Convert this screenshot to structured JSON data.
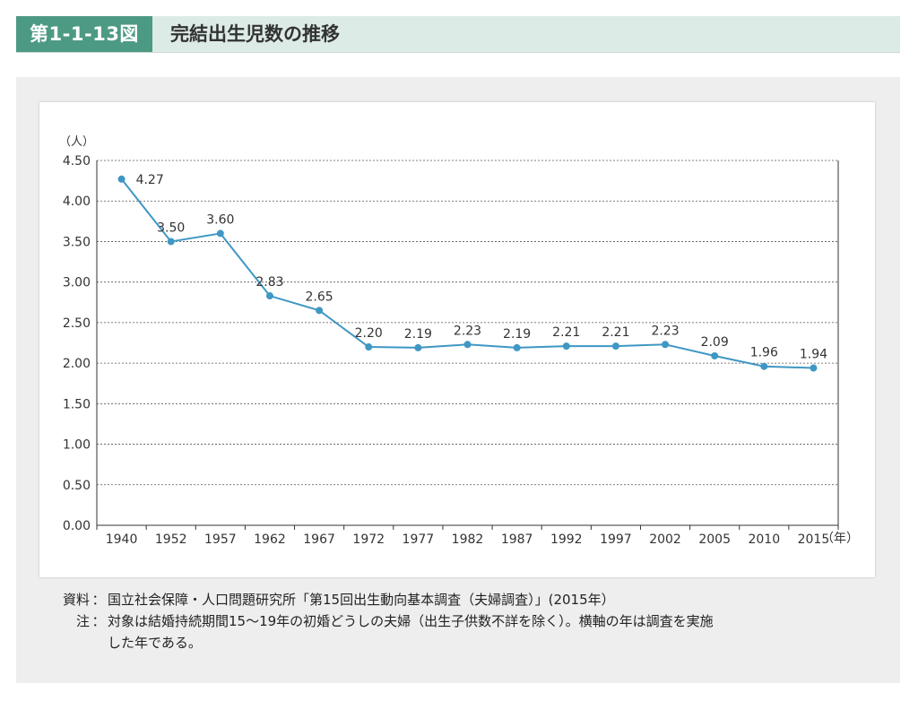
{
  "header": {
    "figure_number": "第1-1-13図",
    "title": "完結出生児数の推移"
  },
  "chart_data": {
    "type": "line",
    "ylabel": "（人）",
    "xunit": "（年）",
    "ylim": [
      0,
      4.5
    ],
    "yticks": [
      "0.00",
      "0.50",
      "1.00",
      "1.50",
      "2.00",
      "2.50",
      "3.00",
      "3.50",
      "4.00",
      "4.50"
    ],
    "categories": [
      "1940",
      "1952",
      "1957",
      "1962",
      "1967",
      "1972",
      "1977",
      "1982",
      "1987",
      "1992",
      "1997",
      "2002",
      "2005",
      "2010",
      "2015"
    ],
    "series": [
      {
        "values": [
          4.27,
          3.5,
          3.6,
          2.83,
          2.65,
          2.2,
          2.19,
          2.23,
          2.19,
          2.21,
          2.21,
          2.23,
          2.09,
          1.96,
          1.94
        ],
        "labels": [
          "4.27",
          "3.50",
          "3.60",
          "2.83",
          "2.65",
          "2.20",
          "2.19",
          "2.23",
          "2.19",
          "2.21",
          "2.21",
          "2.23",
          "2.09",
          "1.96",
          "1.94"
        ]
      }
    ],
    "line_color": "#3f97c4",
    "grid": "dashed horizontal"
  },
  "notes": {
    "source_label": "資料",
    "source_text": "国立社会保障・人口問題研究所「第15回出生動向基本調査（夫婦調査）」(2015年）",
    "note_label": "注",
    "note_text": "対象は結婚持続期間15〜19年の初婚どうしの夫婦（出生子供数不詳を除く）。横軸の年は調査を実施",
    "note_text_cont": "した年である。"
  }
}
